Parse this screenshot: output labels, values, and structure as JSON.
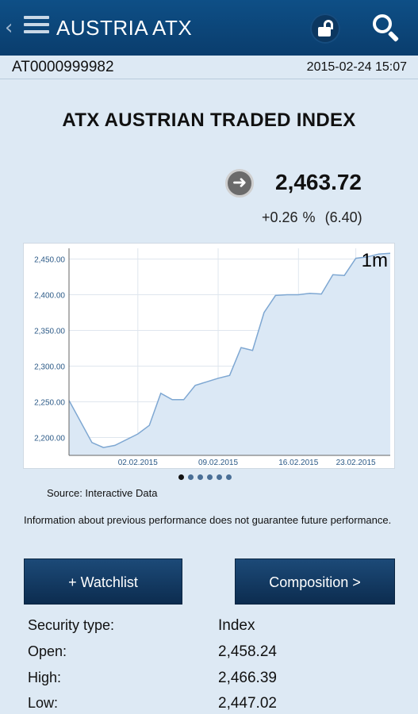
{
  "header": {
    "title": "AUSTRIA ATX",
    "back_glyph": "‹",
    "icons": [
      "back-icon",
      "menu-icon",
      "unlock-icon",
      "search-icon"
    ]
  },
  "meta": {
    "isin": "AT0000999982",
    "timestamp": "2015-02-24 15:07"
  },
  "instrument": {
    "name": "ATX AUSTRIAN TRADED INDEX",
    "price": "2,463.72",
    "change_pct": "+0.26 %",
    "change_abs": "(6.40)",
    "arrow_glyph": "➜"
  },
  "chart_data": {
    "type": "line",
    "period_label": "1m",
    "x_ticks": [
      "02.02.2015",
      "09.02.2015",
      "16.02.2015",
      "23.02.2015"
    ],
    "x_tick_positions": [
      6,
      13,
      20,
      25
    ],
    "y_ticks": [
      "2,200.00",
      "2,250.00",
      "2,300.00",
      "2,350.00",
      "2,400.00",
      "2,450.00"
    ],
    "ylim": [
      2175,
      2465
    ],
    "xlim": [
      0,
      28
    ],
    "grid": true,
    "x": [
      0,
      2,
      3,
      4,
      6,
      7,
      8,
      9,
      10,
      11,
      12,
      13,
      14,
      15,
      16,
      17,
      18,
      19,
      20,
      21,
      22,
      23,
      24,
      25,
      26,
      27,
      28
    ],
    "values": [
      2252,
      2193,
      2186,
      2189,
      2205,
      2217,
      2262,
      2253,
      2253,
      2273,
      2278,
      2283,
      2287,
      2326,
      2322,
      2375,
      2399,
      2400,
      2400,
      2402,
      2401,
      2428,
      2427,
      2451,
      2453,
      2457,
      2458
    ]
  },
  "pager": {
    "count": 6,
    "active": 0
  },
  "source": "Source: Interactive Data",
  "disclaimer": "Information about previous performance does not guarantee future performance.",
  "buttons": {
    "watchlist": "+ Watchlist",
    "composition": "Composition >"
  },
  "facts": [
    {
      "label": "Security type:",
      "value": "Index"
    },
    {
      "label": "Open:",
      "value": "2,458.24"
    },
    {
      "label": "High:",
      "value": "2,466.39"
    },
    {
      "label": "Low:",
      "value": "2,447.02"
    }
  ]
}
